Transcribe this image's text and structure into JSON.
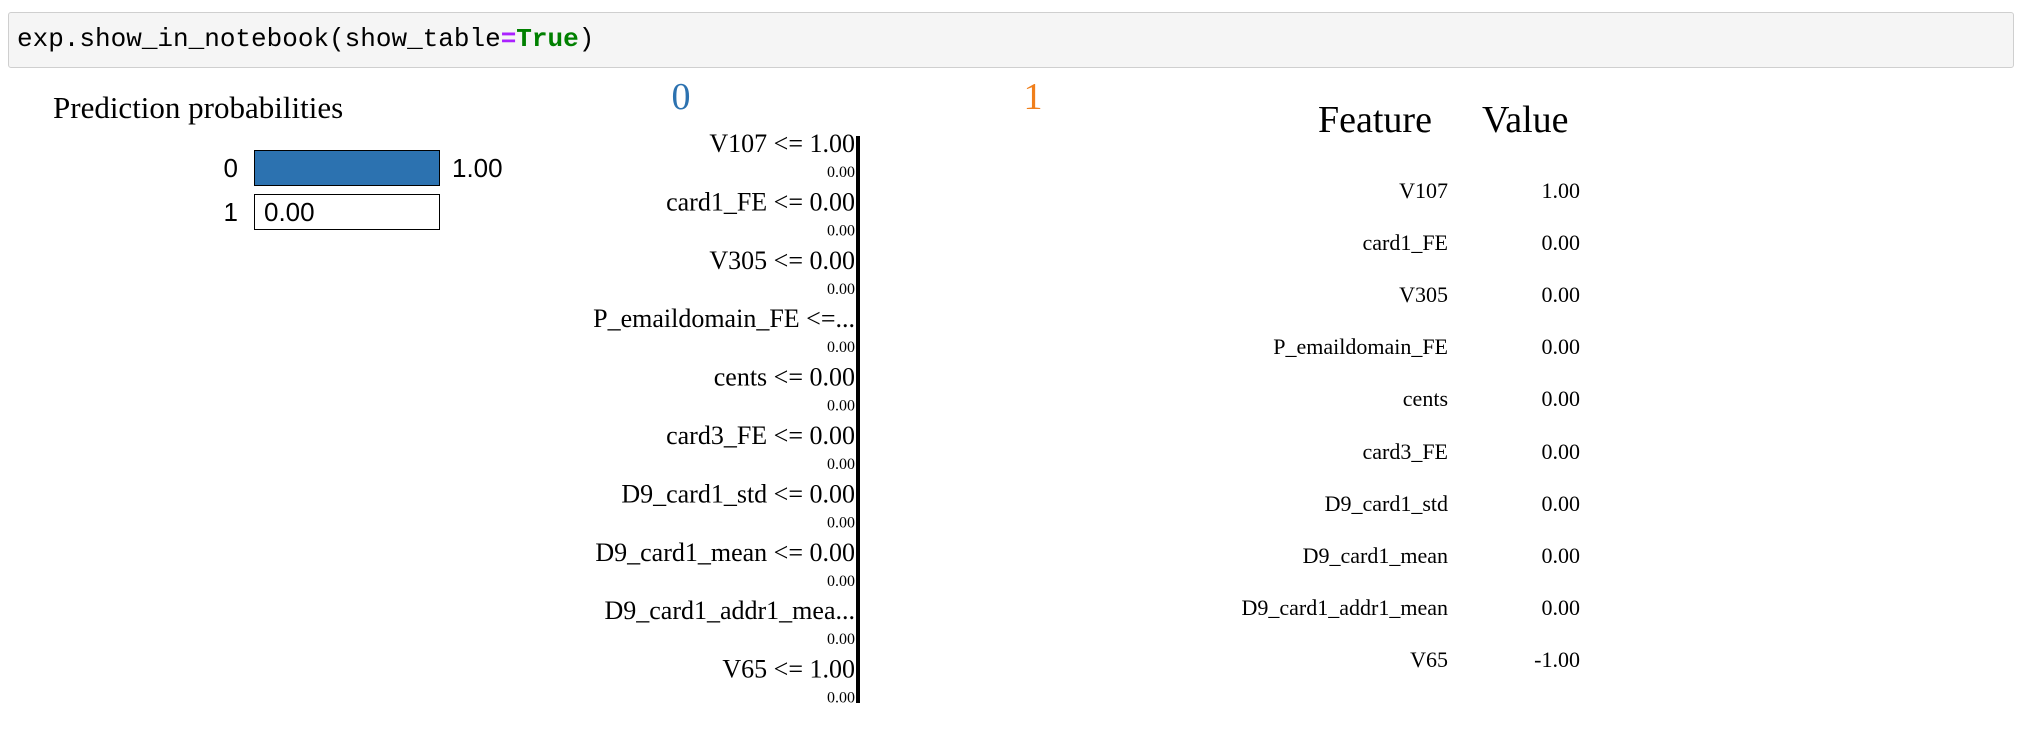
{
  "code_cell": {
    "prefix": "exp.show_in_notebook(show_table",
    "operator": "=",
    "keyword": "True",
    "suffix": ")"
  },
  "prediction_probabilities": {
    "title": "Prediction probabilities",
    "classes": [
      {
        "label": "0",
        "value": 1.0,
        "value_text": "1.00",
        "color": "#2c72b0"
      },
      {
        "label": "1",
        "value": 0.0,
        "value_text": "0.00",
        "color": "#f07f1b"
      }
    ]
  },
  "chart_data": {
    "type": "bar",
    "class_labels": [
      {
        "label": "0",
        "color": "#2c72b0"
      },
      {
        "label": "1",
        "color": "#f07f1b"
      }
    ],
    "categories": [
      "V107 <= 1.00",
      "card1_FE <= 0.00",
      "V305 <= 0.00",
      "P_emaildomain_FE <=...",
      "cents <= 0.00",
      "card3_FE <= 0.00",
      "D9_card1_std <= 0.00",
      "D9_card1_mean <= 0.00",
      "D9_card1_addr1_mea...",
      "V65 <= 1.00"
    ],
    "values": [
      0,
      0,
      0,
      0,
      0,
      0,
      0,
      0,
      0,
      0
    ],
    "value_labels": [
      "0.00",
      "0.00",
      "0.00",
      "0.00",
      "0.00",
      "0.00",
      "0.00",
      "0.00",
      "0.00",
      "0.00"
    ]
  },
  "feature_table": {
    "headers": {
      "feature": "Feature",
      "value": "Value"
    },
    "rows": [
      {
        "feature": "V107",
        "value": "1.00"
      },
      {
        "feature": "card1_FE",
        "value": "0.00"
      },
      {
        "feature": "V305",
        "value": "0.00"
      },
      {
        "feature": "P_emaildomain_FE",
        "value": "0.00"
      },
      {
        "feature": "cents",
        "value": "0.00"
      },
      {
        "feature": "card3_FE",
        "value": "0.00"
      },
      {
        "feature": "D9_card1_std",
        "value": "0.00"
      },
      {
        "feature": "D9_card1_mean",
        "value": "0.00"
      },
      {
        "feature": "D9_card1_addr1_mean",
        "value": "0.00"
      },
      {
        "feature": "V65",
        "value": "-1.00"
      }
    ]
  }
}
